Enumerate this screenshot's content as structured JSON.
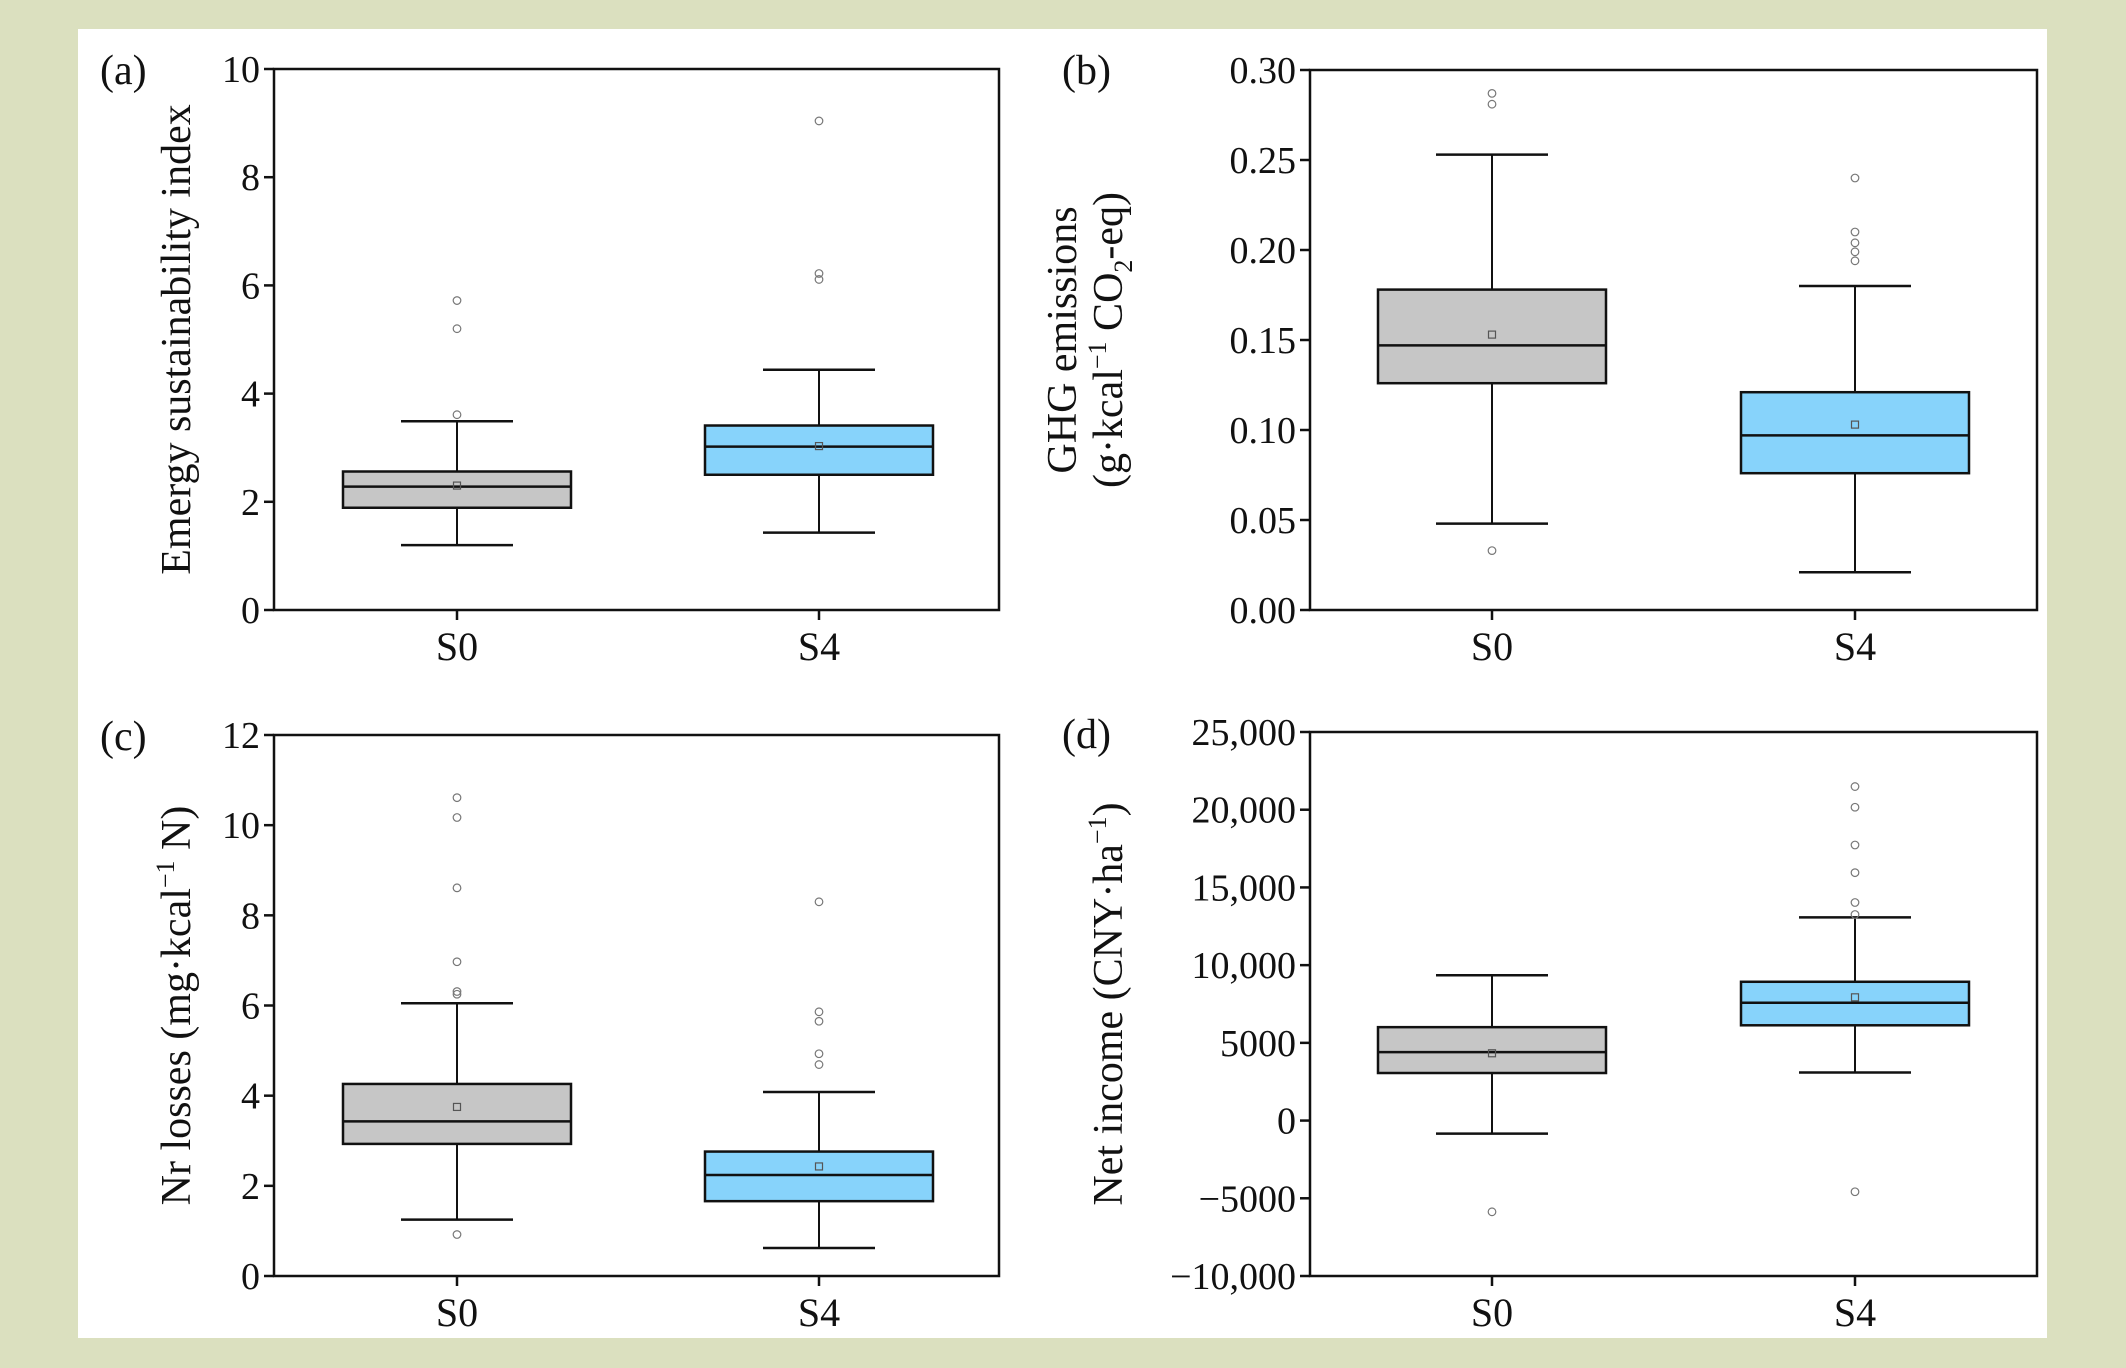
{
  "figure": {
    "colors": {
      "page_background": "#dbe0bf",
      "S0_fill": "#c6c6c6",
      "S4_fill": "#87d3fb",
      "outlier": "#777777",
      "line": "#111111"
    }
  },
  "chart_data": [
    {
      "id": "a",
      "type": "box",
      "panel_label": "(a)",
      "title": "",
      "xlabel": "",
      "ylabel": "Emergy sustainability index",
      "ylim": [
        0,
        10
      ],
      "yticks": [
        0,
        2,
        4,
        6,
        8,
        10
      ],
      "ytick_labels": [
        "0",
        "2",
        "4",
        "6",
        "8",
        "10"
      ],
      "categories": [
        "S0",
        "S4"
      ],
      "series": [
        {
          "name": "S0",
          "q1": 1.89,
          "median": 2.28,
          "q3": 2.56,
          "mean": 2.3,
          "whisker_low": 1.2,
          "whisker_high": 3.49,
          "outliers": [
            3.61,
            5.2,
            5.72
          ]
        },
        {
          "name": "S4",
          "q1": 2.5,
          "median": 3.02,
          "q3": 3.41,
          "mean": 3.03,
          "whisker_low": 1.43,
          "whisker_high": 4.44,
          "outliers": [
            6.11,
            6.22,
            9.04
          ]
        }
      ]
    },
    {
      "id": "b",
      "type": "box",
      "panel_label": "(b)",
      "title": "",
      "xlabel": "",
      "ylabel_line1": "GHG emissions",
      "ylabel_line2_parts": [
        "(g·kcal",
        "−1",
        " CO",
        "2",
        "-eq)"
      ],
      "ylim": [
        0,
        0.3
      ],
      "yticks": [
        0,
        0.05,
        0.1,
        0.15,
        0.2,
        0.25,
        0.3
      ],
      "ytick_labels": [
        "0.00",
        "0.05",
        "0.10",
        "0.15",
        "0.20",
        "0.25",
        "0.30"
      ],
      "categories": [
        "S0",
        "S4"
      ],
      "series": [
        {
          "name": "S0",
          "q1": 0.126,
          "median": 0.147,
          "q3": 0.178,
          "mean": 0.153,
          "whisker_low": 0.048,
          "whisker_high": 0.253,
          "outliers": [
            0.033,
            0.281,
            0.287
          ]
        },
        {
          "name": "S4",
          "q1": 0.076,
          "median": 0.097,
          "q3": 0.121,
          "mean": 0.103,
          "whisker_low": 0.021,
          "whisker_high": 0.18,
          "outliers": [
            0.194,
            0.199,
            0.204,
            0.21,
            0.24
          ]
        }
      ]
    },
    {
      "id": "c",
      "type": "box",
      "panel_label": "(c)",
      "title": "",
      "xlabel": "",
      "ylabel_parts": [
        "Nr losses (mg·kcal",
        "−1",
        " N)"
      ],
      "ylim": [
        0,
        12
      ],
      "yticks": [
        0,
        2,
        4,
        6,
        8,
        10,
        12
      ],
      "ytick_labels": [
        "0",
        "2",
        "4",
        "6",
        "8",
        "10",
        "12"
      ],
      "categories": [
        "S0",
        "S4"
      ],
      "series": [
        {
          "name": "S0",
          "q1": 2.93,
          "median": 3.43,
          "q3": 4.26,
          "mean": 3.75,
          "whisker_low": 1.25,
          "whisker_high": 6.05,
          "outliers": [
            0.92,
            6.25,
            6.31,
            6.97,
            8.61,
            10.17,
            10.61
          ]
        },
        {
          "name": "S4",
          "q1": 1.66,
          "median": 2.24,
          "q3": 2.76,
          "mean": 2.43,
          "whisker_low": 0.62,
          "whisker_high": 4.08,
          "outliers": [
            4.69,
            4.93,
            5.65,
            5.86,
            8.3
          ]
        }
      ]
    },
    {
      "id": "d",
      "type": "box",
      "panel_label": "(d)",
      "title": "",
      "xlabel": "",
      "ylabel_parts": [
        "Net income (CNY·ha",
        "−1",
        ")"
      ],
      "ylim": [
        -10000,
        25000
      ],
      "yticks": [
        -10000,
        -5000,
        0,
        5000,
        10000,
        15000,
        20000,
        25000
      ],
      "ytick_labels": [
        "−10,000",
        "−5000",
        "0",
        "5000",
        "10,000",
        "15,000",
        "20,000",
        "25,000"
      ],
      "categories": [
        "S0",
        "S4"
      ],
      "series": [
        {
          "name": "S0",
          "q1": 3060,
          "median": 4400,
          "q3": 6010,
          "mean": 4330,
          "whisker_low": -840,
          "whisker_high": 9350,
          "outliers": [
            -5870
          ]
        },
        {
          "name": "S4",
          "q1": 6130,
          "median": 7580,
          "q3": 8930,
          "mean": 7930,
          "whisker_low": 3090,
          "whisker_high": 13070,
          "outliers": [
            -4580,
            13260,
            14030,
            15950,
            17730,
            20160,
            21490
          ]
        }
      ]
    }
  ]
}
